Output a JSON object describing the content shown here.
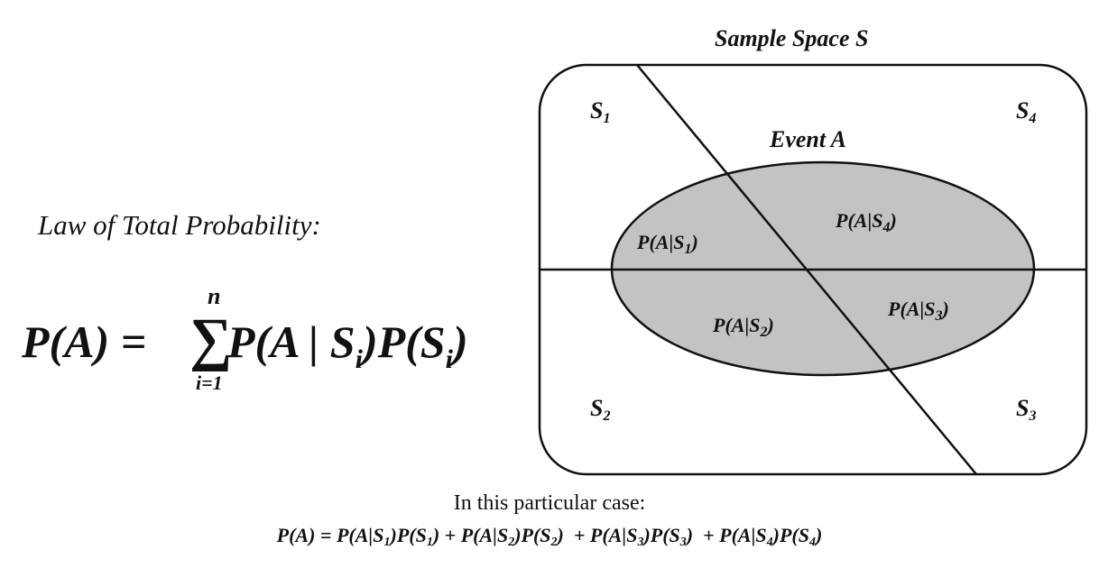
{
  "law": {
    "title": "Law of Total Probability:",
    "lhs": "P(A) =",
    "sum_symbol": "∑",
    "sum_upper": "n",
    "sum_lower": "i=1",
    "term_1": "P(A | S",
    "term_1_sub": "i",
    "term_2": ")P(S",
    "term_2_sub": "i",
    "term_end": ")"
  },
  "diagram": {
    "title": "Sample Space S",
    "event_label": "Event A",
    "regions": [
      {
        "name": "S",
        "sub": "1"
      },
      {
        "name": "S",
        "sub": "4"
      },
      {
        "name": "S",
        "sub": "2"
      },
      {
        "name": "S",
        "sub": "3"
      }
    ],
    "conditionals": [
      {
        "text": "P(A|S",
        "sub": "1",
        "close": ")"
      },
      {
        "text": "P(A|S",
        "sub": "4",
        "close": ")"
      },
      {
        "text": "P(A|S",
        "sub": "2",
        "close": ")"
      },
      {
        "text": "P(A|S",
        "sub": "3",
        "close": ")"
      }
    ],
    "colors": {
      "event_fill": "#c3c3c3",
      "stroke": "#111111"
    }
  },
  "case": {
    "intro": "In this particular case:",
    "formula": {
      "start": "P(A) = P(A|S",
      "s1": "1",
      "p1": ")P(S",
      "s1b": "1",
      "p2": ") + P(A|S",
      "s2": "2",
      "p3": ")P(S",
      "s2b": "2",
      "p4": ")  + P(A|S",
      "s3": "3",
      "p5": ")P(S",
      "s3b": "3",
      "p6": ")  + P(A|S",
      "s4": "4",
      "p7": ")P(S",
      "s4b": "4",
      "end": ")"
    }
  }
}
